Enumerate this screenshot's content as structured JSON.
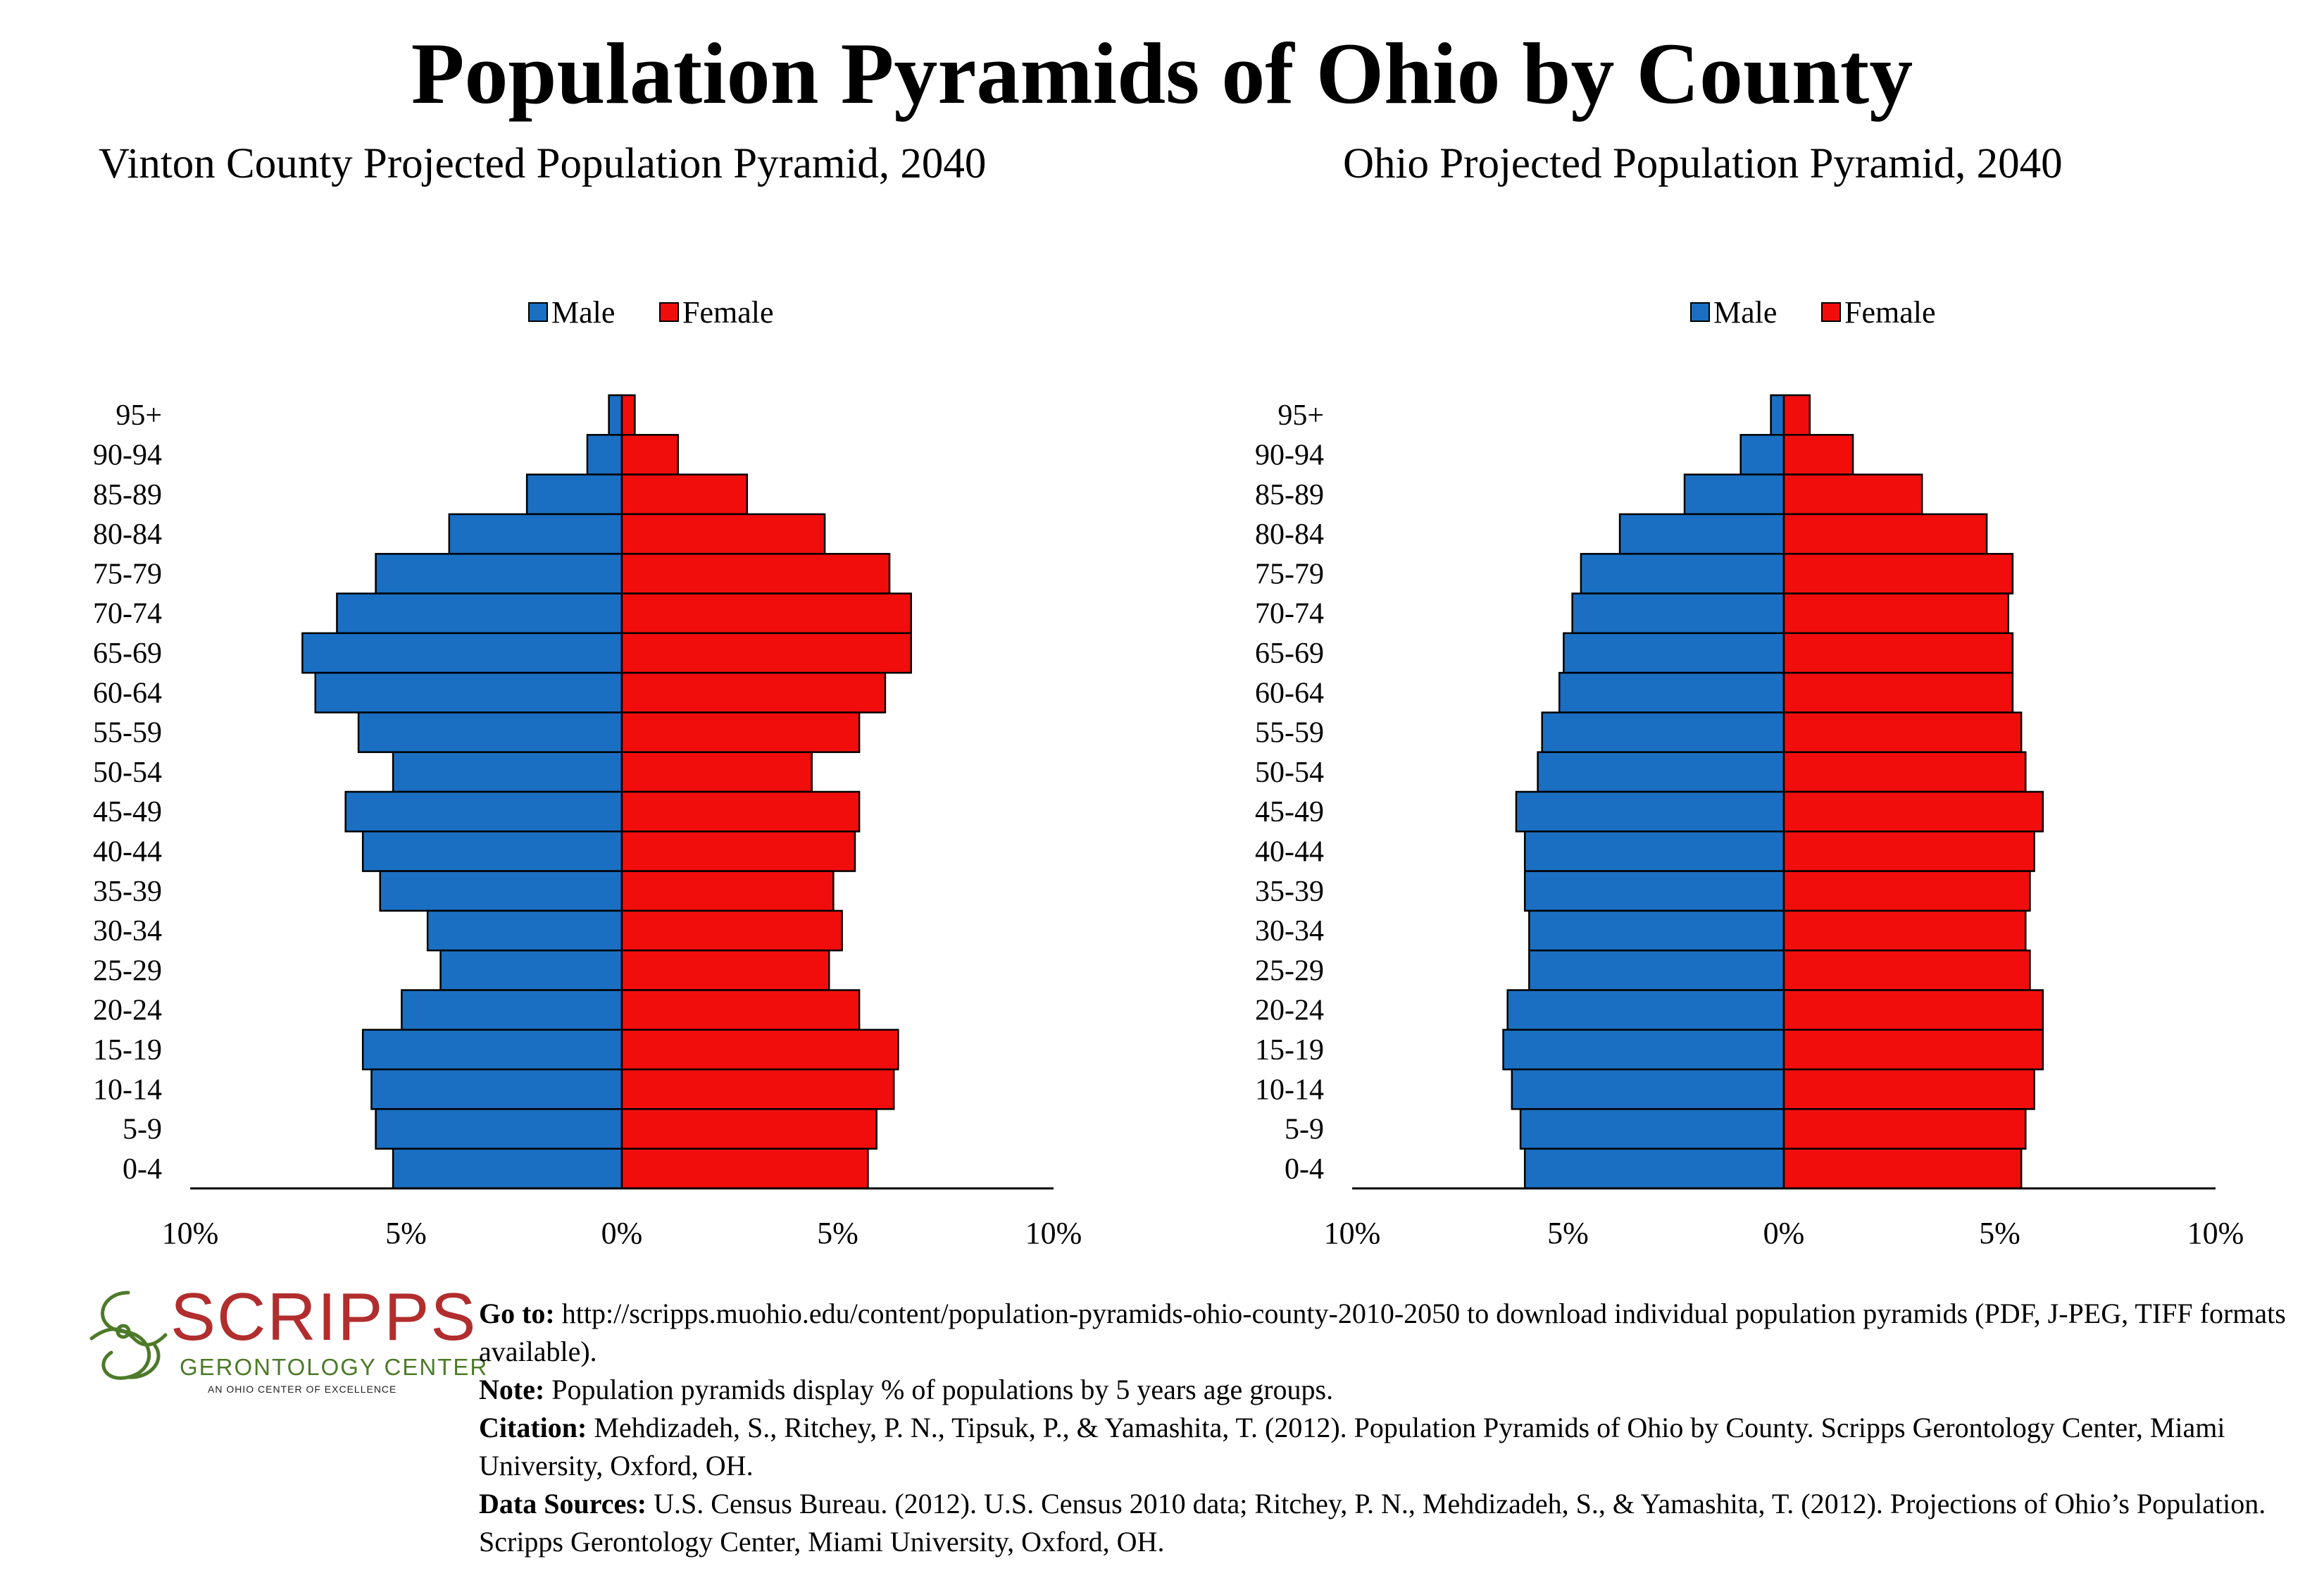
{
  "page": {
    "title": "Population Pyramids of Ohio by County"
  },
  "chart_data": [
    {
      "type": "bar",
      "orientation": "horizontal-pyramid",
      "title": "Vinton County Projected Population Pyramid, 2040",
      "categories": [
        "95+",
        "90-94",
        "85-89",
        "80-84",
        "75-79",
        "70-74",
        "65-69",
        "60-64",
        "55-59",
        "50-54",
        "45-49",
        "40-44",
        "35-39",
        "30-34",
        "25-29",
        "20-24",
        "15-19",
        "10-14",
        "5-9",
        "0-4"
      ],
      "series": [
        {
          "name": "Male",
          "color": "#1a6fc2",
          "values": [
            0.3,
            0.8,
            2.2,
            4.0,
            5.7,
            6.6,
            7.4,
            7.1,
            6.1,
            5.3,
            6.4,
            6.0,
            5.6,
            4.5,
            4.2,
            5.1,
            6.0,
            5.8,
            5.7,
            5.3
          ]
        },
        {
          "name": "Female",
          "color": "#f20d0d",
          "values": [
            0.3,
            1.3,
            2.9,
            4.7,
            6.2,
            6.7,
            6.7,
            6.1,
            5.5,
            4.4,
            5.5,
            5.4,
            4.9,
            5.1,
            4.8,
            5.5,
            6.4,
            6.3,
            5.9,
            5.7
          ]
        }
      ],
      "xlim": [
        -10,
        10
      ],
      "x_ticks": [
        "10%",
        "5%",
        "0%",
        "5%",
        "10%"
      ],
      "legend": "top-center",
      "grid": false
    },
    {
      "type": "bar",
      "orientation": "horizontal-pyramid",
      "title": "Ohio Projected Population Pyramid, 2040",
      "categories": [
        "95+",
        "90-94",
        "85-89",
        "80-84",
        "75-79",
        "70-74",
        "65-69",
        "60-64",
        "55-59",
        "50-54",
        "45-49",
        "40-44",
        "35-39",
        "30-34",
        "25-29",
        "20-24",
        "15-19",
        "10-14",
        "5-9",
        "0-4"
      ],
      "series": [
        {
          "name": "Male",
          "color": "#1a6fc2",
          "values": [
            0.3,
            1.0,
            2.3,
            3.8,
            4.7,
            4.9,
            5.1,
            5.2,
            5.6,
            5.7,
            6.2,
            6.0,
            6.0,
            5.9,
            5.9,
            6.4,
            6.5,
            6.3,
            6.1,
            6.0
          ]
        },
        {
          "name": "Female",
          "color": "#f20d0d",
          "values": [
            0.6,
            1.6,
            3.2,
            4.7,
            5.3,
            5.2,
            5.3,
            5.3,
            5.5,
            5.6,
            6.0,
            5.8,
            5.7,
            5.6,
            5.7,
            6.0,
            6.0,
            5.8,
            5.6,
            5.5
          ]
        }
      ],
      "xlim": [
        -10,
        10
      ],
      "x_ticks": [
        "10%",
        "5%",
        "0%",
        "5%",
        "10%"
      ],
      "legend": "top-center",
      "grid": false
    }
  ],
  "logo": {
    "word": "SCRIPPS",
    "sub": "GERONTOLOGY CENTER",
    "tag": "AN OHIO CENTER OF EXCELLENCE"
  },
  "notes": {
    "goto_label": "Go to:",
    "goto_text": "http://scripps.muohio.edu/content/population-pyramids-ohio-county-2010-2050 to download individual population pyramids (PDF, J-PEG, TIFF formats available).",
    "note_label": "Note:",
    "note_text": "Population pyramids display % of populations by 5 years age groups.",
    "citation_label": "Citation:",
    "citation_text": "Mehdizadeh, S., Ritchey, P. N., Tipsuk, P., & Yamashita, T. (2012). Population Pyramids of Ohio by County. Scripps Gerontology Center, Miami University, Oxford, OH.",
    "sources_label": "Data Sources:",
    "sources_text": "U.S. Census Bureau. (2012). U.S. Census 2010 data; Ritchey, P. N., Mehdizadeh, S., & Yamashita, T. (2012). Projections of Ohio’s Population. Scripps Gerontology Center, Miami University, Oxford, OH."
  }
}
